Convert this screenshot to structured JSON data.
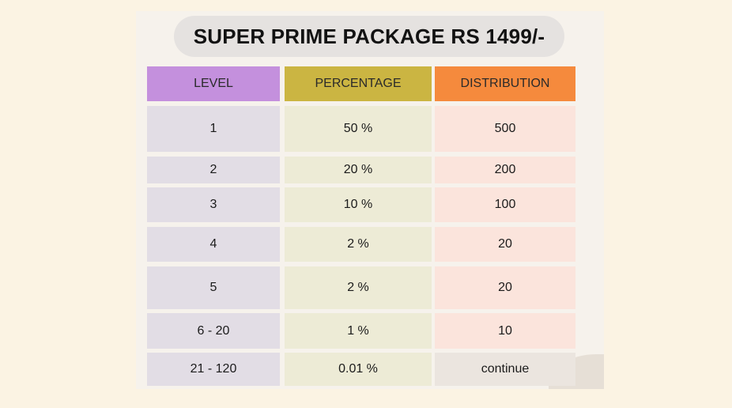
{
  "title": "SUPER PRIME PACKAGE RS 1499/-",
  "headers": [
    "LEVEL",
    "PERCENTAGE",
    "DISTRIBUTION"
  ],
  "rows": [
    [
      "1",
      "50 %",
      "500"
    ],
    [
      "2",
      "20 %",
      "200"
    ],
    [
      "3",
      "10 %",
      "100"
    ],
    [
      "4",
      "2 %",
      "20"
    ],
    [
      "5",
      "2 %",
      "20"
    ],
    [
      "6 - 20",
      "1 %",
      "10"
    ],
    [
      "21 - 120",
      "0.01 %",
      "continue"
    ]
  ],
  "colors": {
    "level_header": "#c490dd",
    "percentage_header": "#cbb542",
    "distribution_header": "#f58a3d"
  }
}
